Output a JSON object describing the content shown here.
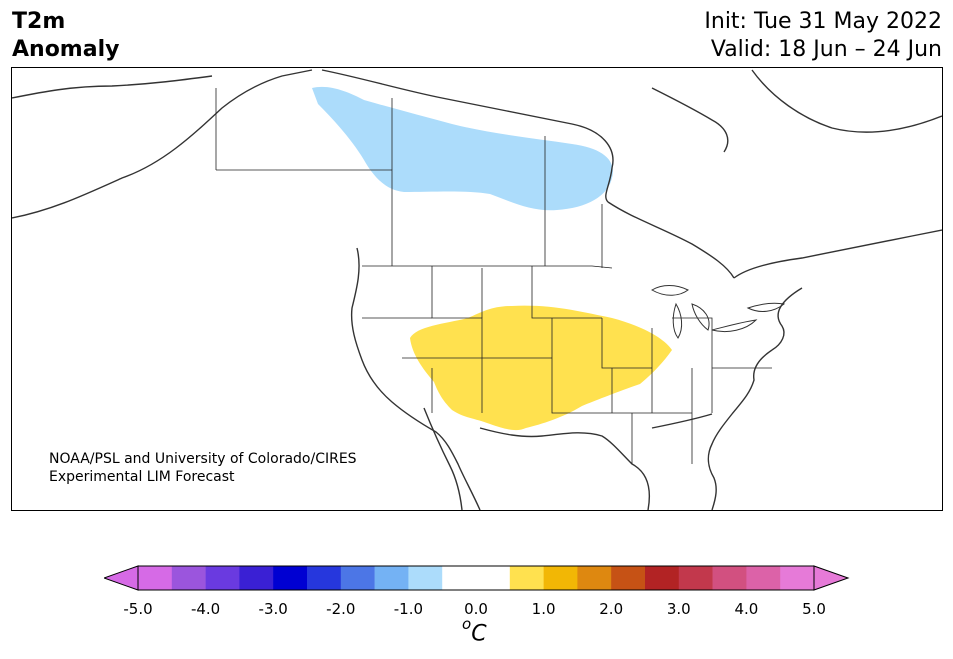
{
  "header": {
    "title_line1": "T2m",
    "title_line2": "Anomaly",
    "init_label": "Init: Tue 31 May 2022",
    "valid_label": "Valid: 18 Jun – 24 Jun"
  },
  "map": {
    "region": "North America",
    "anomaly_regions": [
      {
        "area": "central Canada (Saskatchewan / Manitoba / Hudson Bay)",
        "category": "-0.5 to -1.0",
        "color": "#acdcfb"
      },
      {
        "area": "central United States (Nevada to Missouri / Arkansas)",
        "category": "0.5 to 1.0",
        "color": "#ffe14f"
      }
    ],
    "credit_line1": "NOAA/PSL and University of Colorado/CIRES",
    "credit_line2": "Experimental LIM Forecast"
  },
  "colorbar": {
    "bins": [
      {
        "color": "#d66ae6"
      },
      {
        "color": "#9b55dd"
      },
      {
        "color": "#6a3ae0"
      },
      {
        "color": "#3a20d4"
      },
      {
        "color": "#0000d2"
      },
      {
        "color": "#2637dd"
      },
      {
        "color": "#4c76e6"
      },
      {
        "color": "#74b2f4"
      },
      {
        "color": "#acdcfb"
      },
      {
        "color": "#ffffff"
      },
      {
        "color": "#ffffff"
      },
      {
        "color": "#ffe14f"
      },
      {
        "color": "#f2b705"
      },
      {
        "color": "#de8810"
      },
      {
        "color": "#c65215"
      },
      {
        "color": "#b22324"
      },
      {
        "color": "#c2384c"
      },
      {
        "color": "#d25080"
      },
      {
        "color": "#dc62a8"
      },
      {
        "color": "#e67ad8"
      }
    ],
    "under_color": "#d66ae6",
    "over_color": "#e67ad8",
    "ticks": [
      "-5.0",
      "-4.0",
      "-3.0",
      "-2.0",
      "-1.0",
      "0.0",
      "1.0",
      "2.0",
      "3.0",
      "4.0",
      "5.0"
    ],
    "unit_sup": "o",
    "unit": "C"
  }
}
